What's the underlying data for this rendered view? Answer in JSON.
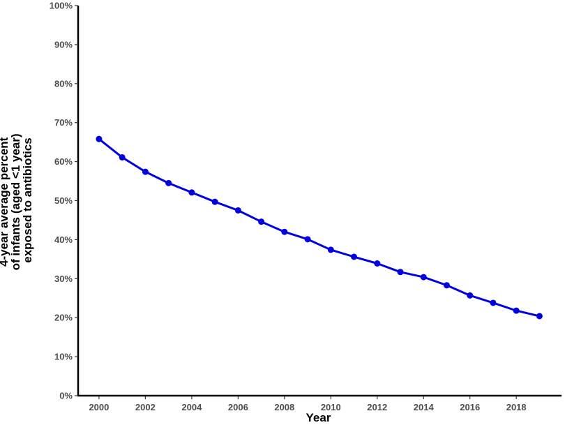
{
  "chart_data": {
    "type": "line",
    "title": "",
    "xlabel": "Year",
    "ylabel_lines": [
      "4-year average percent",
      "of infants (aged <1 year)",
      "exposed to antibiotics"
    ],
    "x": [
      2000,
      2001,
      2002,
      2003,
      2004,
      2005,
      2006,
      2007,
      2008,
      2009,
      2010,
      2011,
      2012,
      2013,
      2014,
      2015,
      2016,
      2017,
      2018,
      2019
    ],
    "series": [
      {
        "values": [
          65.8,
          61.1,
          57.4,
          54.5,
          52.1,
          49.7,
          47.5,
          44.6,
          42.0,
          40.1,
          37.4,
          35.6,
          33.9,
          31.7,
          30.4,
          28.3,
          25.7,
          23.8,
          21.8,
          20.4
        ],
        "color": "#0000e0"
      }
    ],
    "xlim": [
      1999.1,
      2019.95
    ],
    "ylim": [
      0,
      100
    ],
    "x_ticks": [
      2000,
      2002,
      2004,
      2006,
      2008,
      2010,
      2012,
      2014,
      2016,
      2018
    ],
    "x_tick_labels": [
      "2000",
      "2002",
      "2004",
      "2006",
      "2008",
      "2010",
      "2012",
      "2014",
      "2016",
      "2018"
    ],
    "y_ticks": [
      0,
      10,
      20,
      30,
      40,
      50,
      60,
      70,
      80,
      90,
      100
    ],
    "y_tick_labels": [
      "0%",
      "10%",
      "20%",
      "30%",
      "40%",
      "50%",
      "60%",
      "70%",
      "80%",
      "90%",
      "100%"
    ],
    "grid": false,
    "legend": "none"
  }
}
